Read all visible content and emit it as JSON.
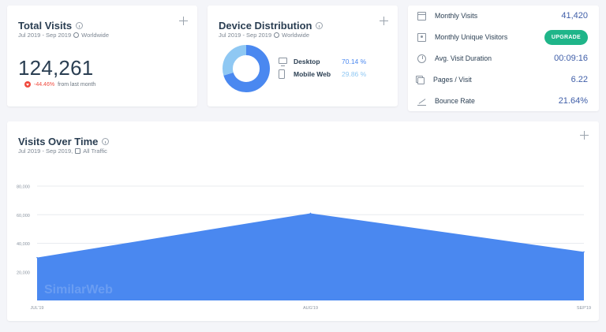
{
  "total_visits": {
    "title": "Total Visits",
    "subtitle": "Jul 2019 - Sep 2019",
    "region": "Worldwide",
    "value": "124,261",
    "change": "-44.46%",
    "change_suffix": "from last month"
  },
  "device_distribution": {
    "title": "Device Distribution",
    "subtitle": "Jul 2019 - Sep 2019",
    "region": "Worldwide",
    "devices": [
      {
        "label": "Desktop",
        "value": "70.14 %",
        "share": 70.14,
        "color": "#4a88f0"
      },
      {
        "label": "Mobile Web",
        "value": "29.86 %",
        "share": 29.86,
        "color": "#8fc8f3"
      }
    ]
  },
  "stats": [
    {
      "label": "Monthly Visits",
      "value": "41,420",
      "icon": "calendar-icon"
    },
    {
      "label": "Monthly Unique Visitors",
      "value": "UPGRADE",
      "icon": "person-icon"
    },
    {
      "label": "Avg. Visit Duration",
      "value": "00:09:16",
      "icon": "clock-icon"
    },
    {
      "label": "Pages / Visit",
      "value": "6.22",
      "icon": "pages-icon"
    },
    {
      "label": "Bounce Rate",
      "value": "21.64%",
      "icon": "bounce-icon"
    }
  ],
  "visits_over_time": {
    "title": "Visits Over Time",
    "subtitle": "Jul 2019 - Sep 2019,",
    "traffic": "All Traffic",
    "watermark": "SimilarWeb"
  },
  "chart_data": {
    "type": "area",
    "categories": [
      "JUL'19",
      "AUG'19",
      "SEP'19"
    ],
    "values": [
      30000,
      61000,
      34000
    ],
    "yticks": [
      "20,000",
      "40,000",
      "60,000",
      "80,000"
    ],
    "ylim": [
      0,
      80000
    ],
    "grid": true,
    "color": "#4a88f0"
  }
}
